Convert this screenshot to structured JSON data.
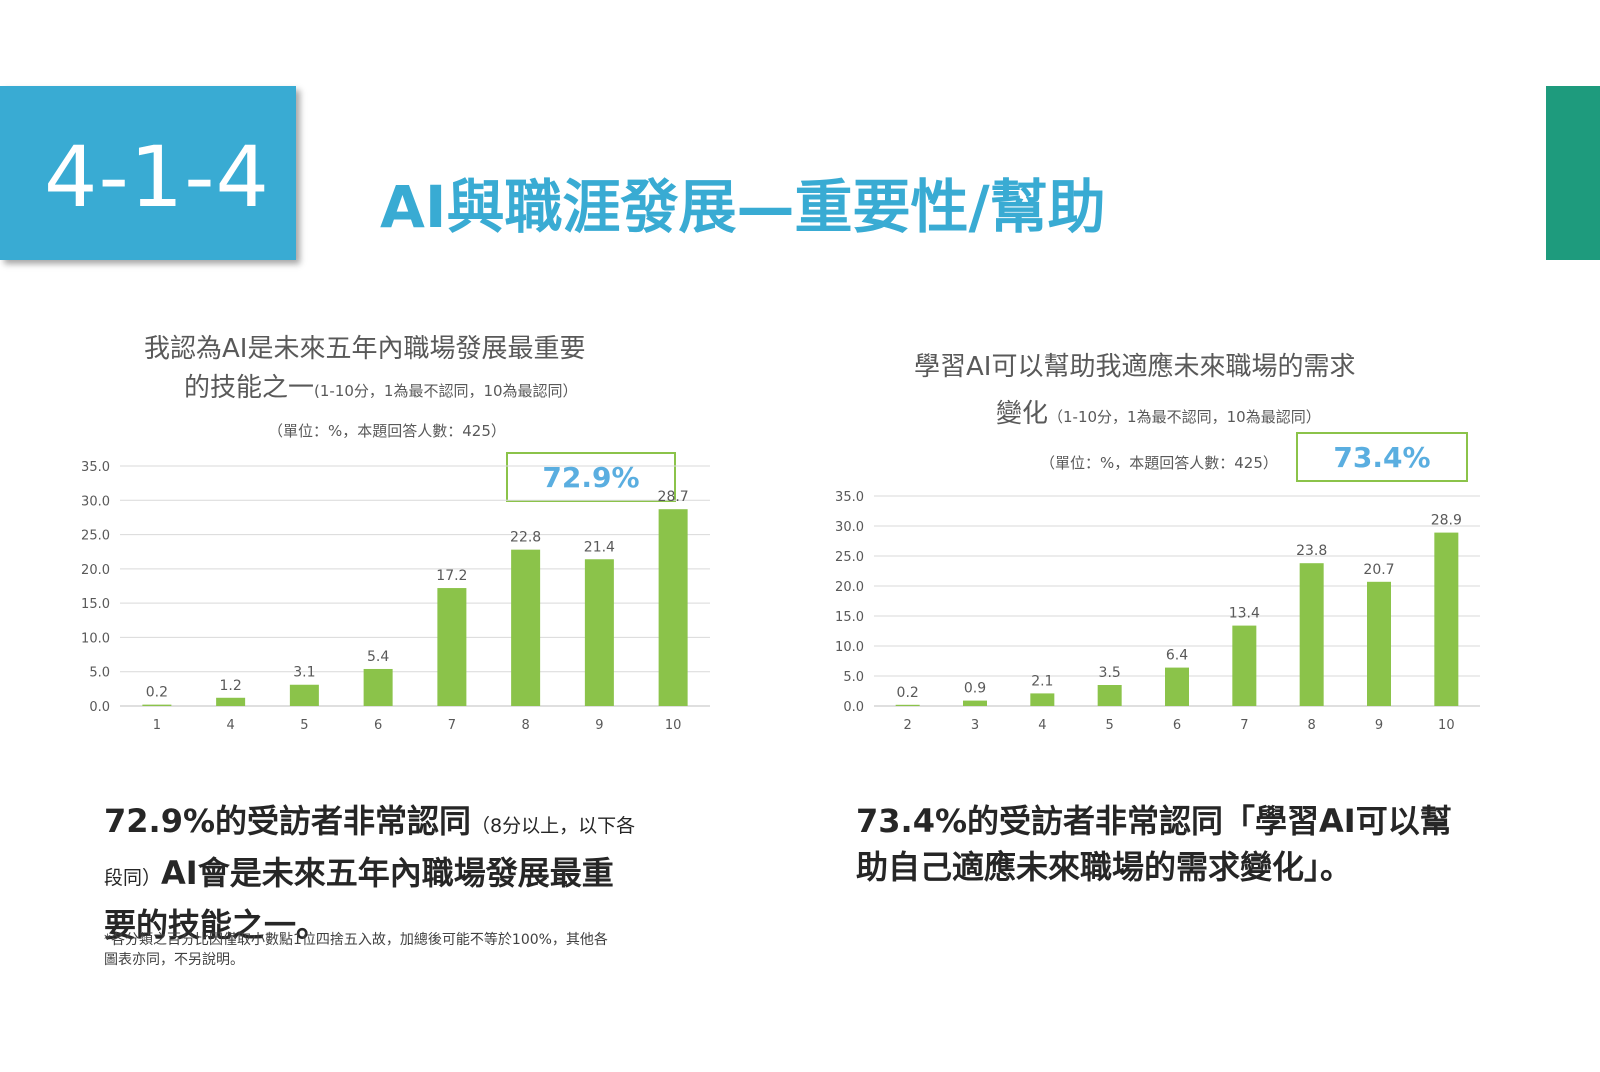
{
  "header": {
    "section_number": "4-1-4",
    "title": "AI與職涯發展—重要性/幫助",
    "tab_color": "#39abd3",
    "title_color": "#39abd3",
    "right_bar_color": "#1e9b7d"
  },
  "chart_data": [
    {
      "type": "bar",
      "title_line1": "我認為AI是未來五年內職場發展最重要",
      "title_line2": "的技能之一",
      "title_note": "(1-10分，1為最不認同，10為最認同）",
      "unit_note": "（單位：%，本題回答人數：425）",
      "highlight": "72.9%",
      "categories": [
        "1",
        "4",
        "5",
        "6",
        "7",
        "8",
        "9",
        "10"
      ],
      "values": [
        0.2,
        1.2,
        3.1,
        5.4,
        17.2,
        22.8,
        21.4,
        28.7
      ],
      "value_labels": [
        "0.2",
        "1.2",
        "3.1",
        "5.4",
        "17.2",
        "22.8",
        "21.4",
        "28.7"
      ],
      "y_ticks": [
        "0.0",
        "5.0",
        "10.0",
        "15.0",
        "20.0",
        "25.0",
        "30.0",
        "35.0"
      ],
      "ylim": [
        0,
        35
      ],
      "grid": true,
      "legend": "none",
      "bar_color": "#8bc34a",
      "highlight_color": "#5aaee0"
    },
    {
      "type": "bar",
      "title_line1": "學習AI可以幫助我適應未來職場的需求",
      "title_line2": "變化",
      "title_note": "（1-10分，1為最不認同，10為最認同）",
      "unit_note": "（單位：%，本題回答人數：425）",
      "highlight": "73.4%",
      "categories": [
        "2",
        "3",
        "4",
        "5",
        "6",
        "7",
        "8",
        "9",
        "10"
      ],
      "values": [
        0.2,
        0.9,
        2.1,
        3.5,
        6.4,
        13.4,
        23.8,
        20.7,
        28.9
      ],
      "value_labels": [
        "0.2",
        "0.9",
        "2.1",
        "3.5",
        "6.4",
        "13.4",
        "23.8",
        "20.7",
        "28.9"
      ],
      "y_ticks": [
        "0.0",
        "5.0",
        "10.0",
        "15.0",
        "20.0",
        "25.0",
        "30.0",
        "35.0"
      ],
      "ylim": [
        0,
        35
      ],
      "grid": true,
      "legend": "none",
      "bar_color": "#8bc34a",
      "highlight_color": "#5aaee0"
    }
  ],
  "captions": {
    "left_main_1": "72.9%的受訪者非常認同",
    "left_small_1": "（8分以上，以下各",
    "left_small_2": "段同）",
    "left_main_2": "AI會是未來五年內職場發展最重",
    "left_main_3": "要的技能之一。",
    "footnote_line1": "*各分類之百分比因僅取小數點1位四捨五入故，加總後可能不等於100%，其他各",
    "footnote_line2": "圖表亦同，不另說明。",
    "right_line1": "73.4%的受訪者非常認同「學習AI可以幫",
    "right_line2": "助自己適應未來職場的需求變化」。"
  }
}
